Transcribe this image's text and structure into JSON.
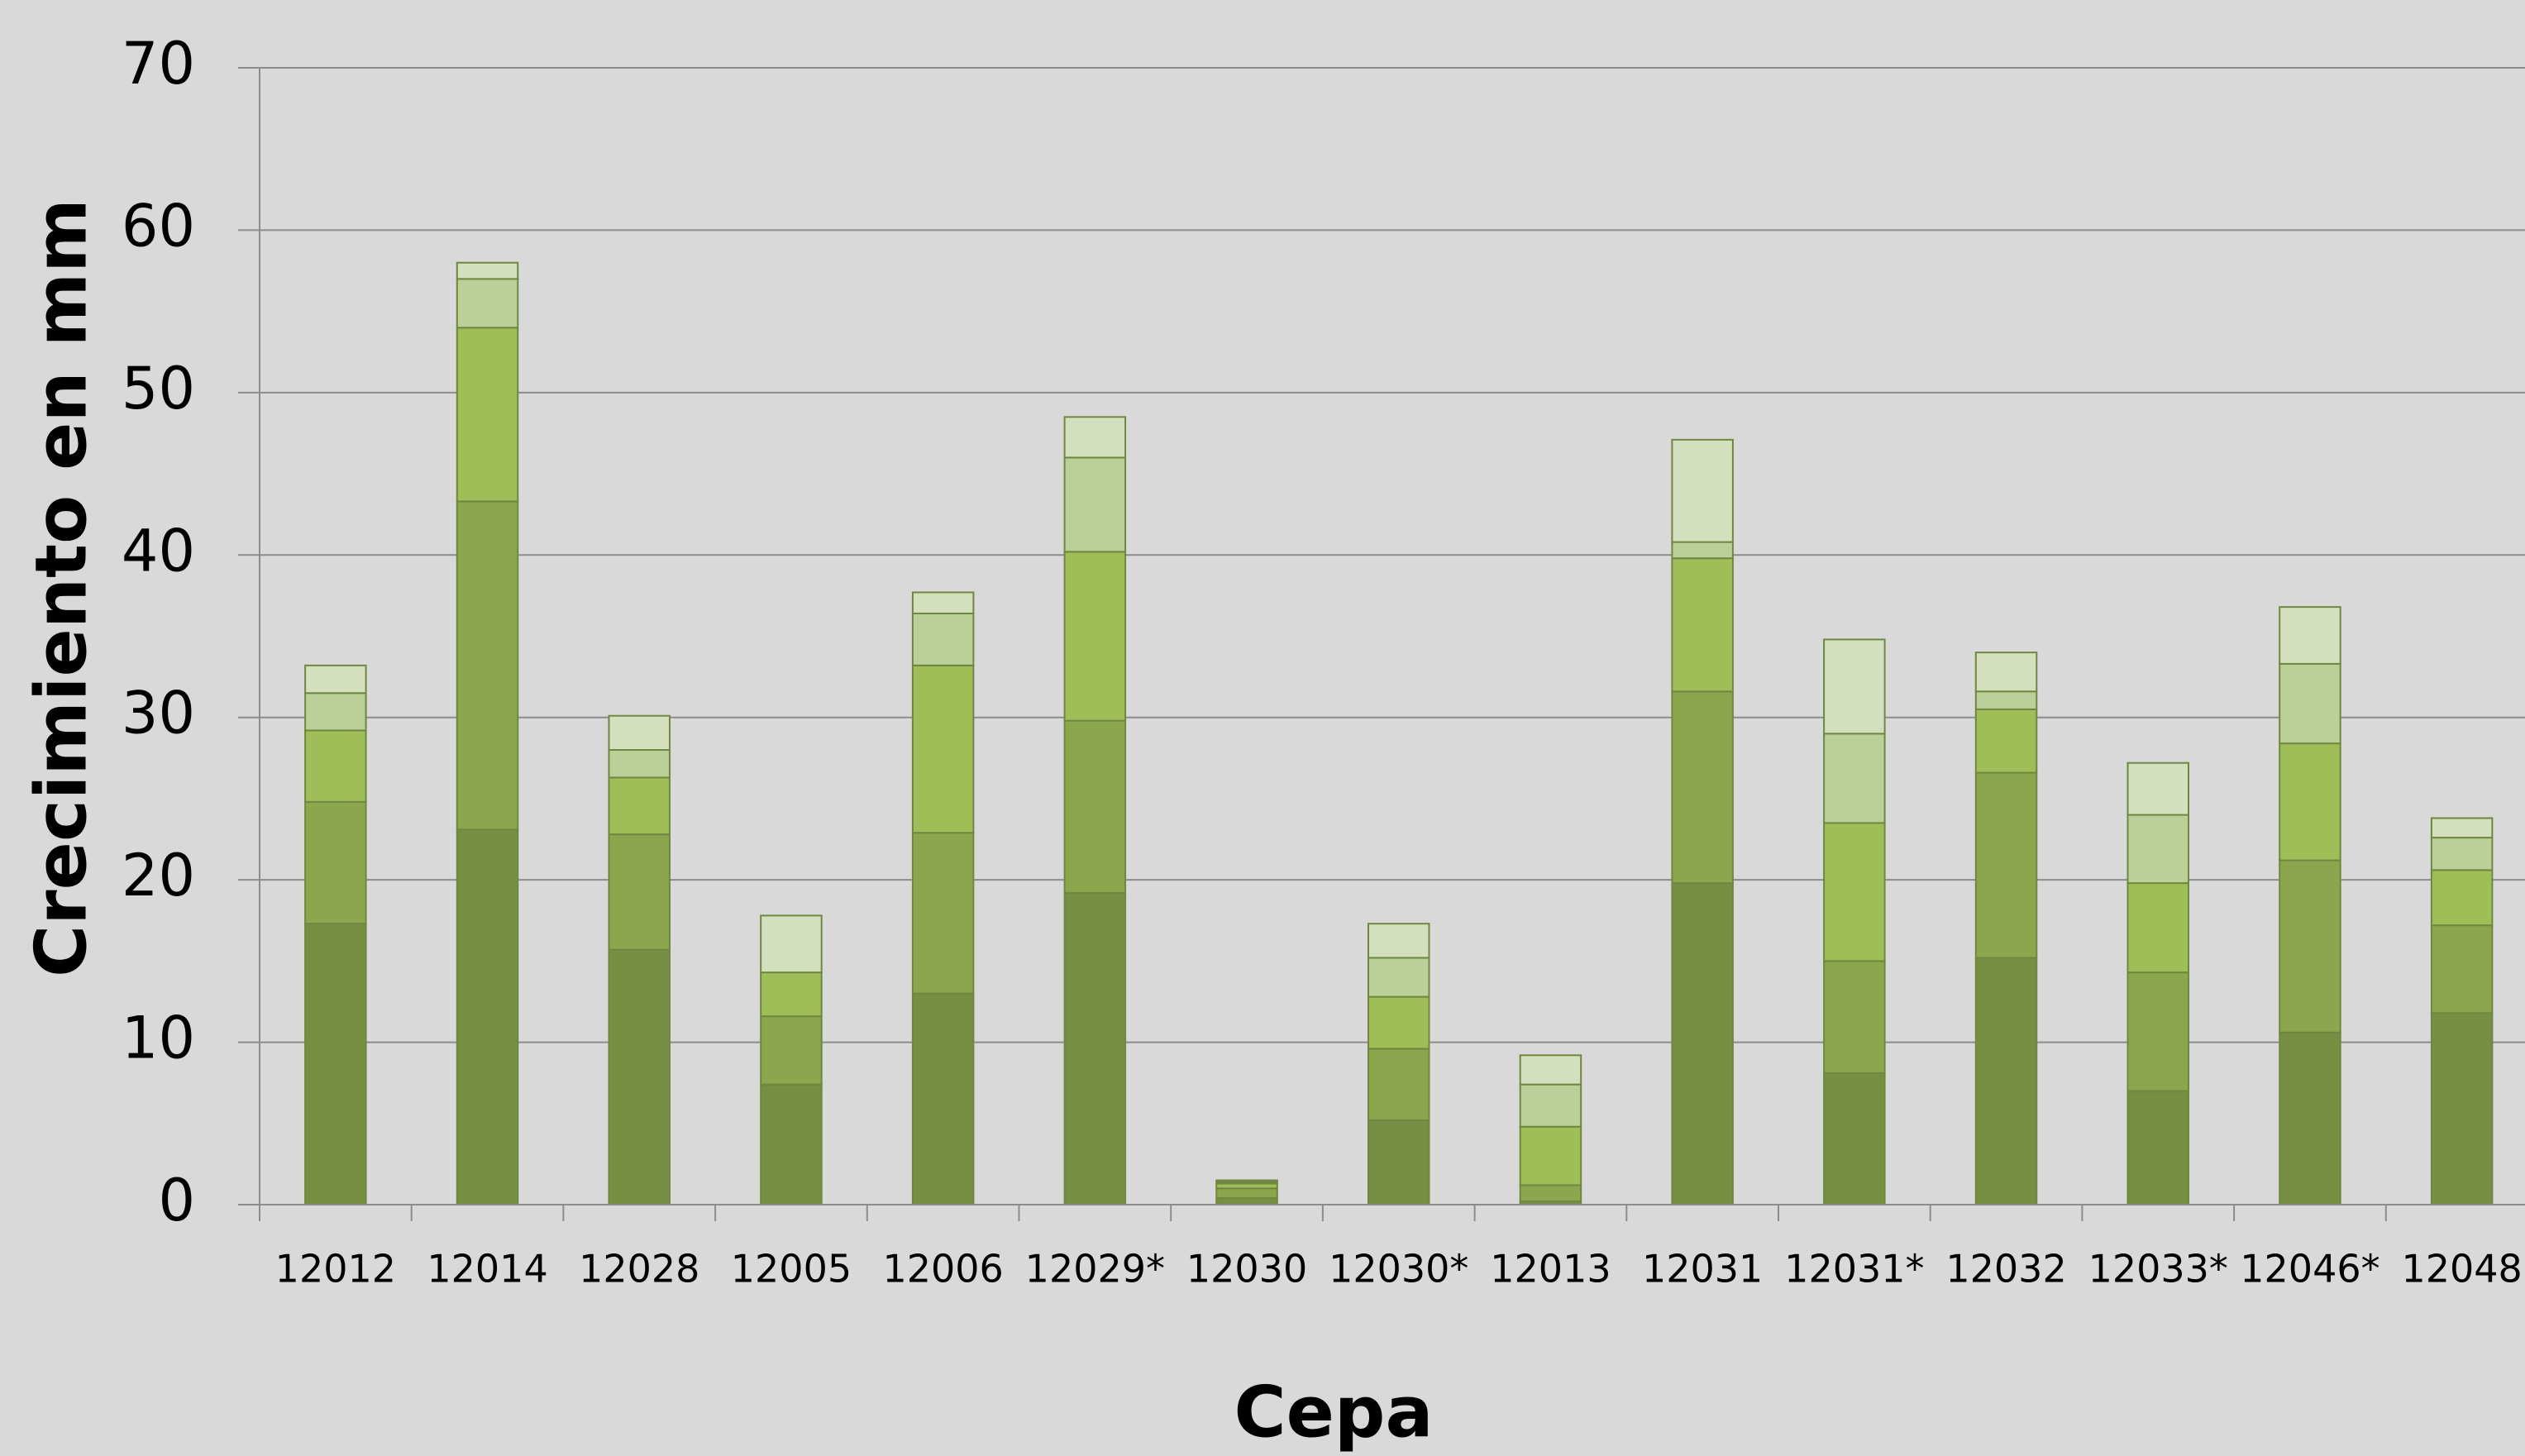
{
  "chart_data": {
    "type": "stacked_bar",
    "x_label": "Cepa",
    "y_label": "Crecimiento en mm",
    "categories": [
      "12012",
      "12014",
      "12028",
      "12005",
      "12006",
      "12029*",
      "12030",
      "12030*",
      "12013",
      "12031",
      "12031*",
      "12032",
      "12033*",
      "12046*",
      "12048"
    ],
    "series": [
      {
        "color": "#768f42",
        "values": [
          17.3,
          23.1,
          15.7,
          7.4,
          13.0,
          19.2,
          0.4,
          5.2,
          0.2,
          19.8,
          8.1,
          15.2,
          7.0,
          10.6,
          11.8
        ]
      },
      {
        "color": "#8ba64d",
        "values": [
          7.5,
          20.2,
          7.1,
          4.2,
          9.9,
          10.6,
          0.6,
          4.4,
          1.0,
          11.8,
          6.9,
          11.4,
          7.3,
          10.6,
          5.4
        ]
      },
      {
        "color": "#9fbe58",
        "values": [
          4.4,
          10.7,
          3.5,
          2.7,
          10.3,
          10.4,
          0.3,
          3.2,
          3.6,
          8.2,
          8.5,
          3.9,
          5.5,
          7.2,
          3.4
        ]
      },
      {
        "color": "#bccf98",
        "values": [
          2.3,
          3.0,
          1.7,
          0,
          3.2,
          5.8,
          0.1,
          2.4,
          2.6,
          1.0,
          5.5,
          1.1,
          4.2,
          4.9,
          2.0
        ]
      },
      {
        "color": "#d4e0bd",
        "values": [
          1.7,
          1.0,
          2.1,
          3.5,
          1.3,
          2.5,
          0.1,
          2.1,
          1.8,
          6.3,
          5.8,
          2.4,
          3.2,
          3.5,
          1.2
        ]
      }
    ],
    "ylim": [
      0,
      70
    ],
    "yticks": [
      0,
      10,
      20,
      30,
      40,
      50,
      60,
      70
    ],
    "grid": true
  }
}
